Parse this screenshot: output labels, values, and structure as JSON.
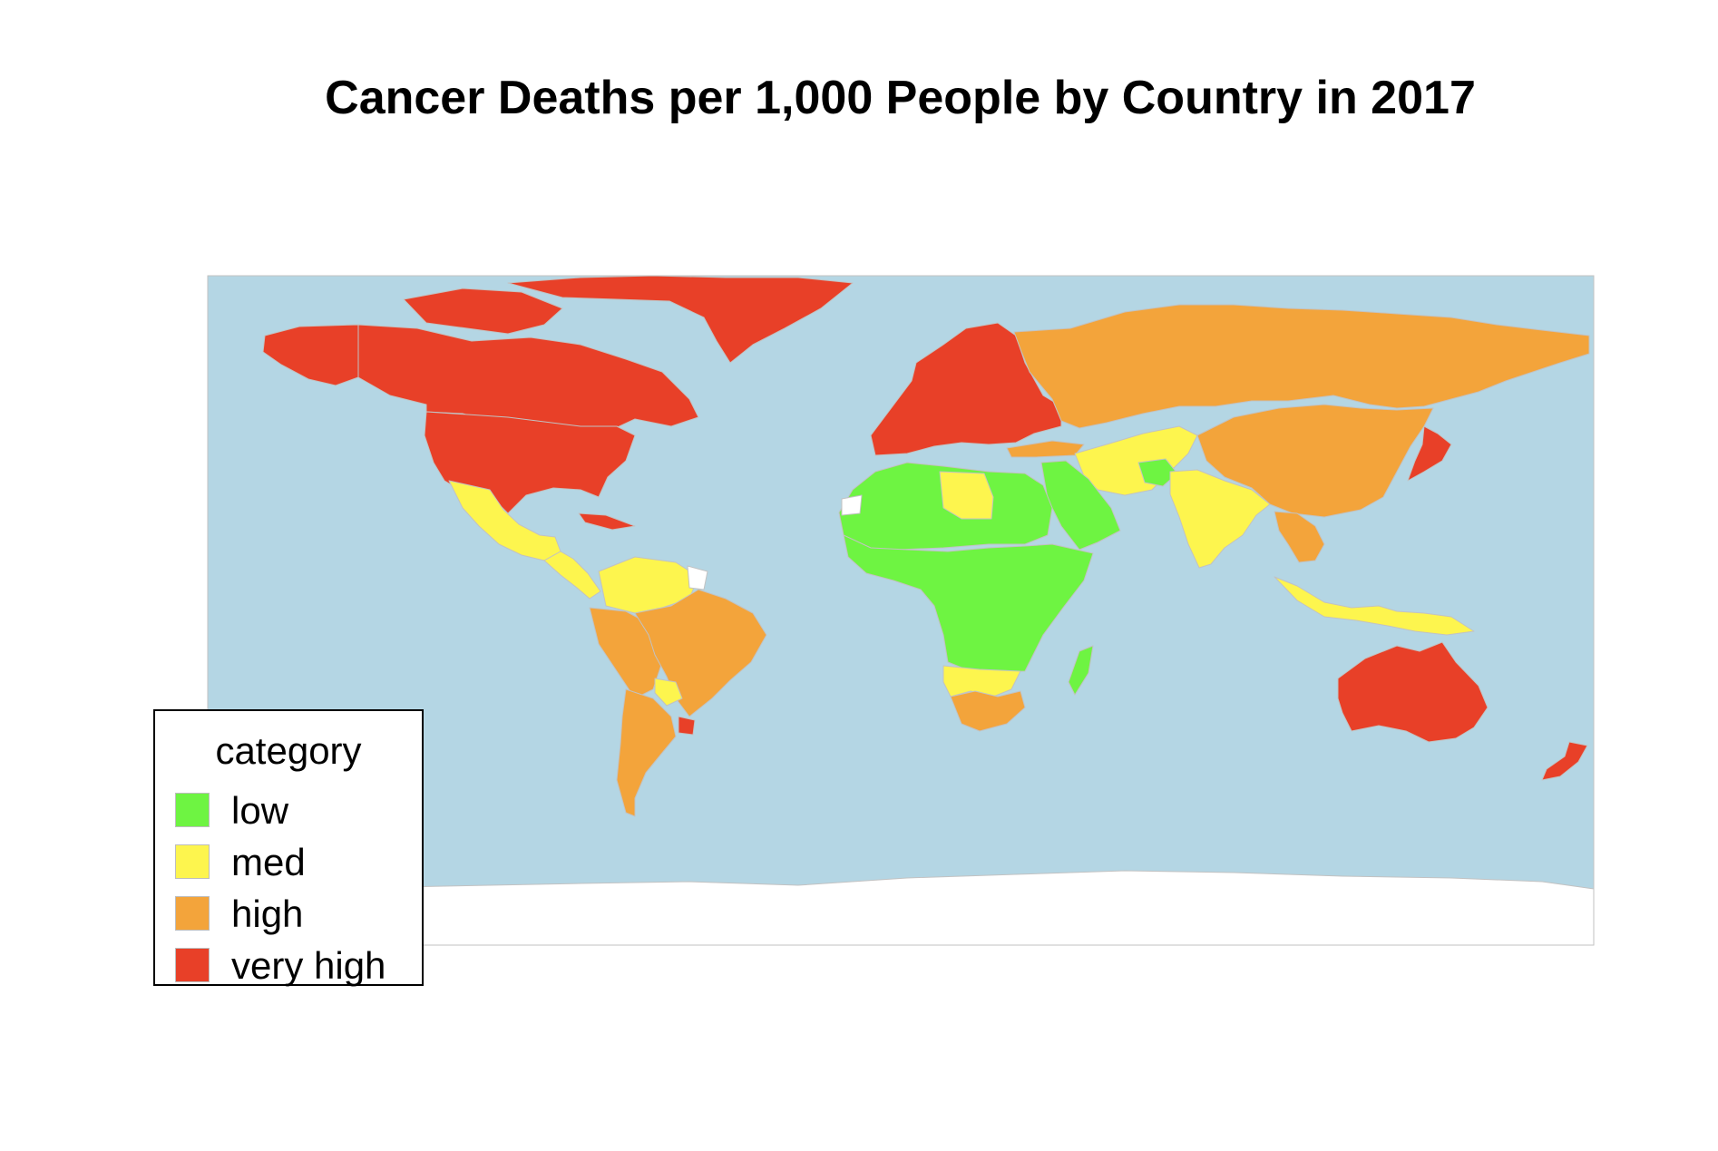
{
  "title": "Cancer Deaths per 1,000 People by Country in 2017",
  "colors": {
    "ocean": "#b4d6e4",
    "border": "#c2c2c2",
    "no_data": "#ffffff",
    "low": "#6ef442",
    "med": "#fdf54e",
    "high": "#f3a43b",
    "very_high": "#e84028"
  },
  "legend": {
    "title": "category",
    "items": [
      {
        "key": "low",
        "label": "low",
        "color": "#6ef442"
      },
      {
        "key": "med",
        "label": "med",
        "color": "#fdf54e"
      },
      {
        "key": "high",
        "label": "high",
        "color": "#f3a43b"
      },
      {
        "key": "very_high",
        "label": "very high",
        "color": "#e84028"
      }
    ]
  },
  "regions": {
    "greenland": "very_high",
    "canada": "very_high",
    "usa": "very_high",
    "alaska": "very_high",
    "mexico": "med",
    "central_america": "med",
    "cuba": "very_high",
    "venezuela_colombia": "med",
    "guianas": "no_data",
    "brazil": "high",
    "peru_bolivia": "high",
    "paraguay": "med",
    "uruguay": "very_high",
    "argentina_chile": "high",
    "europe": "very_high",
    "russia": "high",
    "turkey": "high",
    "middle_east": "med",
    "afghanistan": "low",
    "saudi_arabia": "low",
    "north_africa": "low",
    "libya": "med",
    "west_sahara": "no_data",
    "sub_saharan_africa": "low",
    "angola_zambia": "med",
    "south_africa": "high",
    "madagascar": "low",
    "india": "med",
    "china": "high",
    "indochina": "high",
    "japan": "very_high",
    "indonesia": "med",
    "australia": "very_high",
    "new_zealand": "very_high",
    "antarctica": "no_data"
  }
}
